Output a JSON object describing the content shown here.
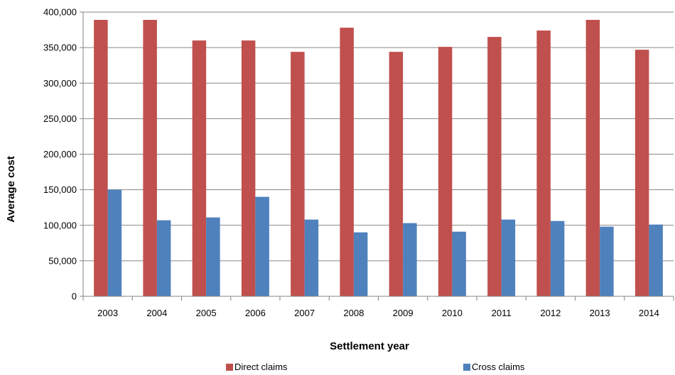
{
  "chart_data": {
    "type": "bar",
    "xlabel": "Settlement year",
    "ylabel": "Average cost",
    "ylim": [
      0,
      400000
    ],
    "yticks": [
      "0",
      "50,000",
      "100,000",
      "150,000",
      "200,000",
      "250,000",
      "300,000",
      "350,000",
      "400,000"
    ],
    "ytick_values": [
      0,
      50000,
      100000,
      150000,
      200000,
      250000,
      300000,
      350000,
      400000
    ],
    "grid": true,
    "legend_position": "bottom",
    "categories": [
      "2003",
      "2004",
      "2005",
      "2006",
      "2007",
      "2008",
      "2009",
      "2010",
      "2011",
      "2012",
      "2013",
      "2014"
    ],
    "series": [
      {
        "name": "Direct claims",
        "color": "#c0504d",
        "values": [
          389000,
          389000,
          360000,
          360000,
          344000,
          378000,
          344000,
          351000,
          365000,
          374000,
          389000,
          347000
        ]
      },
      {
        "name": "Cross claims",
        "color": "#4f81bd",
        "values": [
          150000,
          107000,
          111000,
          140000,
          108000,
          90000,
          103000,
          91000,
          108000,
          106000,
          98000,
          101000
        ]
      }
    ]
  }
}
